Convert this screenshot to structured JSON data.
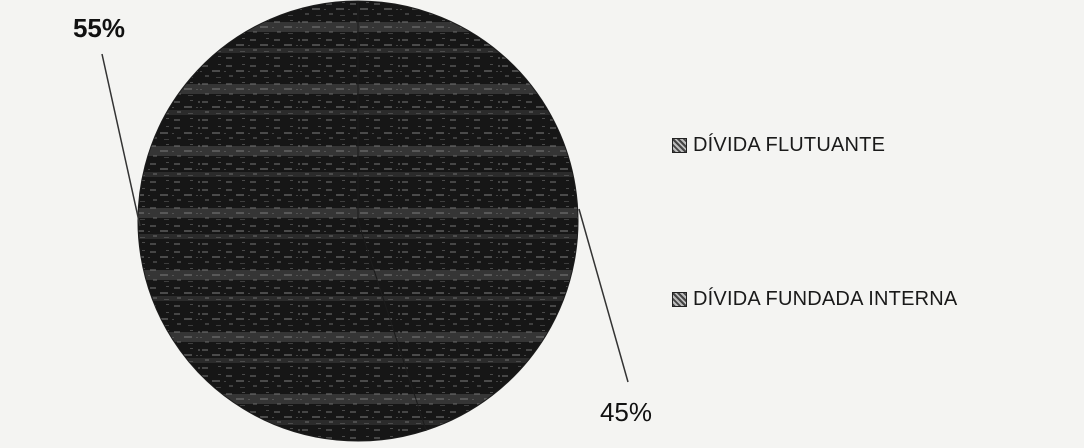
{
  "chart_data": {
    "type": "pie",
    "categories": [
      "DÍVIDA FLUTUANTE",
      "DÍVIDA FUNDADA INTERNA"
    ],
    "values": [
      45,
      55
    ],
    "data_labels": [
      "45%",
      "55%"
    ],
    "legend_position": "right",
    "colors": {
      "slice_fill": "#1c1c1c",
      "slice_texture": "#8a8a8a",
      "leader_line": "#333333",
      "background": "#f4f4f2"
    }
  }
}
